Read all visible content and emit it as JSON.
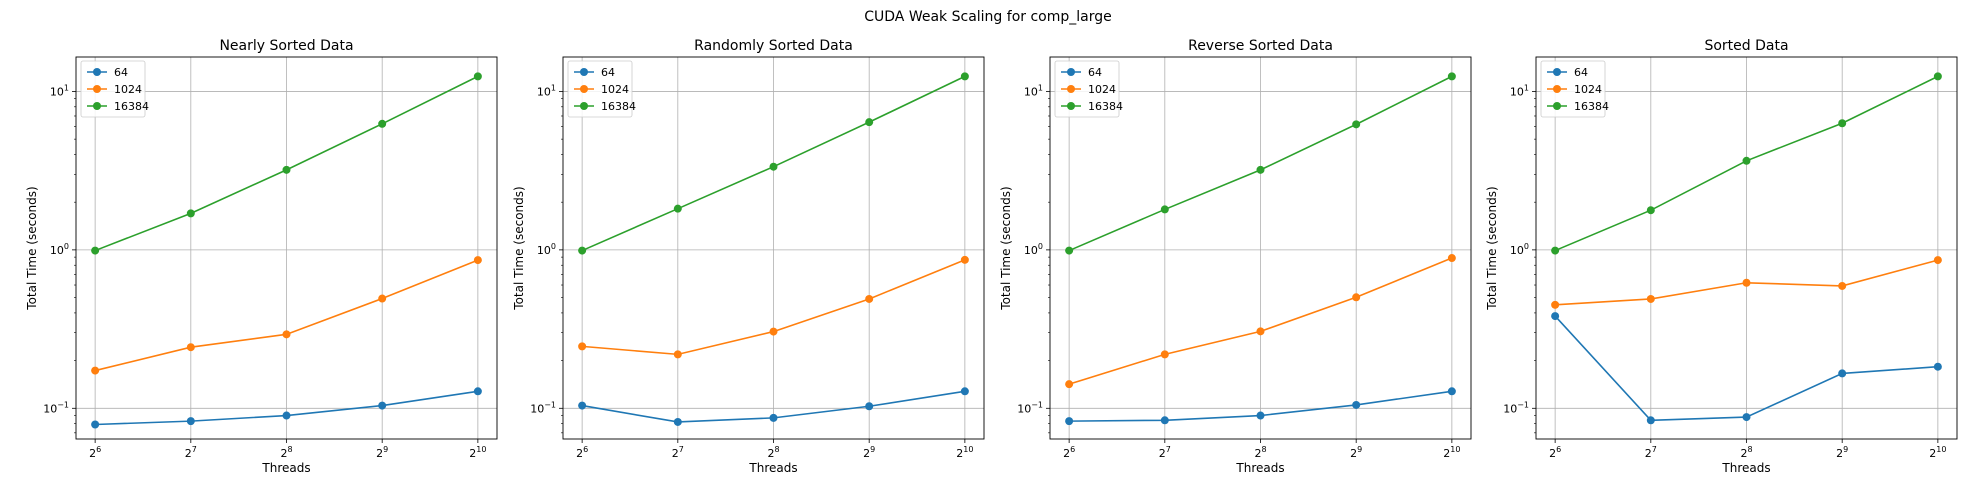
{
  "figure_title": "CUDA Weak Scaling for comp_large",
  "colors": {
    "64": "#1f77b4",
    "1024": "#ff7f0e",
    "16384": "#2ca02c",
    "grid": "#b0b0b0"
  },
  "chart_data": [
    {
      "type": "line",
      "title": "Nearly Sorted Data",
      "xlabel": "Threads",
      "ylabel": "Total Time (seconds)",
      "x": [
        6,
        7,
        8,
        9,
        10
      ],
      "x_tick_labels": [
        {
          "base": "2",
          "exp": "6"
        },
        {
          "base": "2",
          "exp": "7"
        },
        {
          "base": "2",
          "exp": "8"
        },
        {
          "base": "2",
          "exp": "9"
        },
        {
          "base": "2",
          "exp": "10"
        }
      ],
      "yscale": "log",
      "y_ticks": [
        {
          "base": "10",
          "exp": "−1",
          "value": 0.1
        },
        {
          "base": "10",
          "exp": "0",
          "value": 1
        },
        {
          "base": "10",
          "exp": "1",
          "value": 10
        }
      ],
      "ylim": [
        0.064,
        16.5
      ],
      "legend": "upper-left",
      "series": [
        {
          "name": "64",
          "values": [
            0.079,
            0.083,
            0.09,
            0.104,
            0.128
          ]
        },
        {
          "name": "1024",
          "values": [
            0.173,
            0.243,
            0.293,
            0.493,
            0.862
          ]
        },
        {
          "name": "16384",
          "values": [
            0.99,
            1.7,
            3.2,
            6.25,
            12.45
          ]
        }
      ]
    },
    {
      "type": "line",
      "title": "Randomly Sorted Data",
      "xlabel": "Threads",
      "ylabel": "Total Time (seconds)",
      "x": [
        6,
        7,
        8,
        9,
        10
      ],
      "x_tick_labels": [
        {
          "base": "2",
          "exp": "6"
        },
        {
          "base": "2",
          "exp": "7"
        },
        {
          "base": "2",
          "exp": "8"
        },
        {
          "base": "2",
          "exp": "9"
        },
        {
          "base": "2",
          "exp": "10"
        }
      ],
      "yscale": "log",
      "y_ticks": [
        {
          "base": "10",
          "exp": "−1",
          "value": 0.1
        },
        {
          "base": "10",
          "exp": "0",
          "value": 1
        },
        {
          "base": "10",
          "exp": "1",
          "value": 10
        }
      ],
      "ylim": [
        0.064,
        16.5
      ],
      "legend": "upper-left",
      "series": [
        {
          "name": "64",
          "values": [
            0.104,
            0.082,
            0.087,
            0.103,
            0.128
          ]
        },
        {
          "name": "1024",
          "values": [
            0.246,
            0.219,
            0.305,
            0.49,
            0.865
          ]
        },
        {
          "name": "16384",
          "values": [
            0.99,
            1.82,
            3.35,
            6.4,
            12.45
          ]
        }
      ]
    },
    {
      "type": "line",
      "title": "Reverse Sorted Data",
      "xlabel": "Threads",
      "ylabel": "Total Time (seconds)",
      "x": [
        6,
        7,
        8,
        9,
        10
      ],
      "x_tick_labels": [
        {
          "base": "2",
          "exp": "6"
        },
        {
          "base": "2",
          "exp": "7"
        },
        {
          "base": "2",
          "exp": "8"
        },
        {
          "base": "2",
          "exp": "9"
        },
        {
          "base": "2",
          "exp": "10"
        }
      ],
      "yscale": "log",
      "y_ticks": [
        {
          "base": "10",
          "exp": "−1",
          "value": 0.1
        },
        {
          "base": "10",
          "exp": "0",
          "value": 1
        },
        {
          "base": "10",
          "exp": "1",
          "value": 10
        }
      ],
      "ylim": [
        0.064,
        16.5
      ],
      "legend": "upper-left",
      "series": [
        {
          "name": "64",
          "values": [
            0.083,
            0.084,
            0.09,
            0.105,
            0.128
          ]
        },
        {
          "name": "1024",
          "values": [
            0.142,
            0.219,
            0.306,
            0.502,
            0.888
          ]
        },
        {
          "name": "16384",
          "values": [
            0.99,
            1.8,
            3.2,
            6.2,
            12.45
          ]
        }
      ]
    },
    {
      "type": "line",
      "title": "Sorted Data",
      "xlabel": "Threads",
      "ylabel": "Total Time (seconds)",
      "x": [
        6,
        7,
        8,
        9,
        10
      ],
      "x_tick_labels": [
        {
          "base": "2",
          "exp": "6"
        },
        {
          "base": "2",
          "exp": "7"
        },
        {
          "base": "2",
          "exp": "8"
        },
        {
          "base": "2",
          "exp": "9"
        },
        {
          "base": "2",
          "exp": "10"
        }
      ],
      "yscale": "log",
      "y_ticks": [
        {
          "base": "10",
          "exp": "−1",
          "value": 0.1
        },
        {
          "base": "10",
          "exp": "0",
          "value": 1
        },
        {
          "base": "10",
          "exp": "1",
          "value": 10
        }
      ],
      "ylim": [
        0.064,
        16.5
      ],
      "legend": "upper-left",
      "series": [
        {
          "name": "64",
          "values": [
            0.382,
            0.084,
            0.088,
            0.166,
            0.183
          ]
        },
        {
          "name": "1024",
          "values": [
            0.45,
            0.49,
            0.62,
            0.592,
            0.862
          ]
        },
        {
          "name": "16384",
          "values": [
            0.99,
            1.78,
            3.65,
            6.3,
            12.45
          ]
        }
      ]
    }
  ]
}
